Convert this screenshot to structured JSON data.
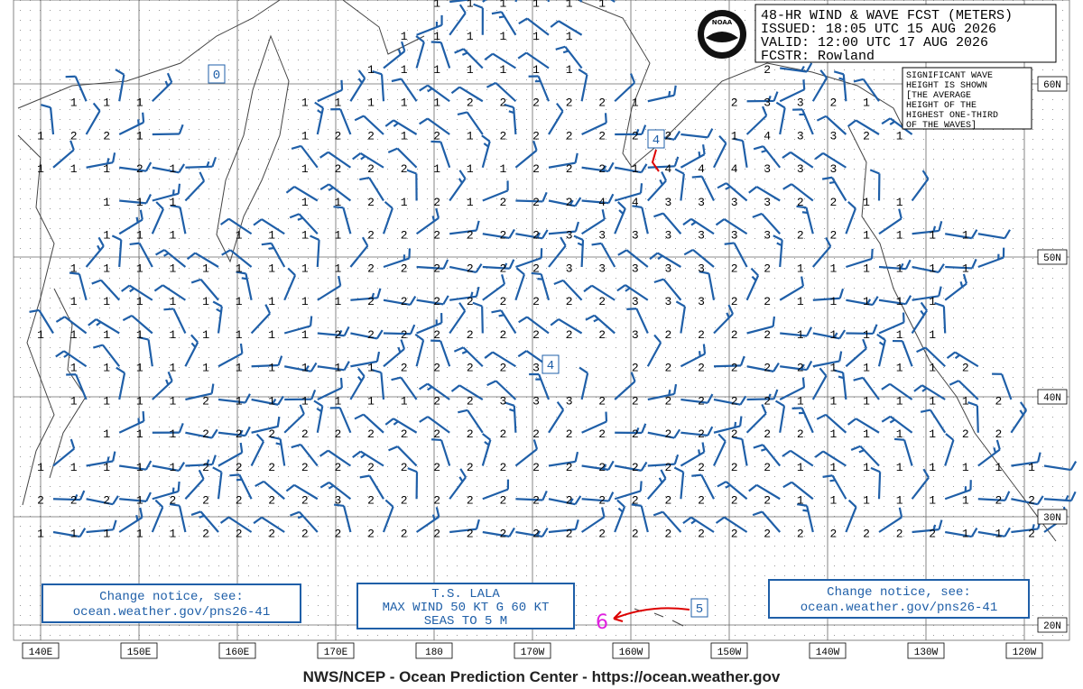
{
  "header": {
    "lines": [
      "48-HR WIND & WAVE FCST (METERS)",
      "ISSUED: 18:05 UTC 15 AUG 2026",
      "VALID:  12:00 UTC 17 AUG 2026",
      "FCSTR:  Rowland"
    ]
  },
  "logo": "NOAA",
  "legend_note": [
    "SIGNIFICANT WAVE",
    "HEIGHT IS SHOWN",
    "[THE AVERAGE",
    "HEIGHT OF THE",
    "HIGHEST ONE-THIRD",
    "OF THE WAVES]"
  ],
  "latitude_labels": [
    "60N",
    "50N",
    "40N",
    "30N",
    "20N"
  ],
  "longitude_labels": [
    "140E",
    "150E",
    "160E",
    "170E",
    "180",
    "170W",
    "160W",
    "150W",
    "140W",
    "130W",
    "120W"
  ],
  "boxed_heights": [
    0,
    4,
    4,
    5
  ],
  "storm_symbol": "6",
  "notice_left": [
    "Change notice, see:",
    "ocean.weather.gov/pns26-41"
  ],
  "notice_right": [
    "Change notice, see:",
    "ocean.weather.gov/pns26-41"
  ],
  "storm_box": [
    "T.S. LALA",
    "MAX WIND 50 KT G 60 KT",
    "SEAS TO 5 M"
  ],
  "footer": "NWS/NCEP - Ocean Prediction Center - https://ocean.weather.gov",
  "wave_heights": [
    [
      null,
      null,
      null,
      null,
      null,
      null,
      null,
      null,
      null,
      null,
      null,
      null,
      1,
      1,
      1,
      1,
      1,
      1,
      null,
      null,
      null,
      null,
      null,
      null,
      null,
      null,
      null,
      null,
      null,
      null,
      null
    ],
    [
      null,
      null,
      null,
      null,
      null,
      null,
      null,
      null,
      null,
      null,
      null,
      1,
      1,
      1,
      1,
      1,
      1,
      null,
      null,
      null,
      null,
      null,
      null,
      null,
      null,
      null,
      null,
      null,
      null,
      null,
      null
    ],
    [
      null,
      null,
      null,
      null,
      null,
      null,
      null,
      null,
      null,
      null,
      1,
      1,
      1,
      1,
      1,
      1,
      1,
      null,
      null,
      null,
      null,
      null,
      2,
      null,
      null,
      null,
      null,
      null,
      null,
      null,
      null
    ],
    [
      null,
      1,
      1,
      1,
      null,
      null,
      null,
      null,
      1,
      1,
      1,
      1,
      1,
      2,
      2,
      2,
      2,
      2,
      1,
      null,
      null,
      2,
      3,
      3,
      2,
      1,
      null,
      null,
      null,
      null,
      null
    ],
    [
      1,
      2,
      2,
      1,
      null,
      null,
      null,
      null,
      1,
      2,
      2,
      1,
      2,
      1,
      2,
      2,
      2,
      2,
      2,
      2,
      null,
      1,
      4,
      3,
      3,
      2,
      1,
      null,
      null,
      null,
      null
    ],
    [
      1,
      1,
      1,
      2,
      1,
      null,
      null,
      null,
      1,
      2,
      2,
      2,
      1,
      1,
      1,
      2,
      2,
      2,
      1,
      4,
      4,
      4,
      3,
      3,
      3,
      null,
      null,
      null,
      null,
      null,
      null
    ],
    [
      null,
      null,
      1,
      1,
      1,
      null,
      null,
      null,
      1,
      1,
      2,
      1,
      2,
      1,
      2,
      2,
      2,
      4,
      4,
      3,
      3,
      3,
      3,
      2,
      2,
      1,
      1,
      null,
      null,
      null,
      null
    ],
    [
      null,
      null,
      1,
      1,
      1,
      null,
      1,
      1,
      1,
      1,
      2,
      2,
      2,
      2,
      2,
      2,
      3,
      3,
      3,
      3,
      3,
      3,
      3,
      2,
      2,
      1,
      1,
      1,
      1,
      null,
      null
    ],
    [
      null,
      1,
      1,
      1,
      1,
      1,
      1,
      1,
      1,
      1,
      2,
      2,
      2,
      2,
      2,
      2,
      3,
      3,
      3,
      3,
      3,
      2,
      2,
      1,
      1,
      1,
      1,
      1,
      1,
      null,
      null
    ],
    [
      null,
      1,
      1,
      1,
      1,
      1,
      1,
      1,
      1,
      1,
      2,
      2,
      2,
      2,
      2,
      2,
      2,
      2,
      3,
      3,
      3,
      2,
      2,
      1,
      1,
      1,
      1,
      1,
      null,
      null,
      null
    ],
    [
      1,
      1,
      1,
      1,
      1,
      1,
      1,
      1,
      1,
      2,
      2,
      2,
      2,
      2,
      2,
      2,
      2,
      2,
      3,
      2,
      2,
      2,
      2,
      1,
      1,
      1,
      1,
      1,
      null,
      null,
      null
    ],
    [
      null,
      1,
      1,
      1,
      1,
      1,
      1,
      1,
      1,
      1,
      1,
      2,
      2,
      2,
      2,
      3,
      null,
      null,
      2,
      2,
      2,
      2,
      2,
      2,
      1,
      1,
      1,
      1,
      2,
      null,
      null
    ],
    [
      null,
      1,
      1,
      1,
      1,
      2,
      1,
      1,
      1,
      1,
      1,
      1,
      2,
      2,
      3,
      3,
      3,
      2,
      2,
      2,
      2,
      2,
      2,
      1,
      1,
      1,
      1,
      1,
      1,
      2,
      null
    ],
    [
      null,
      null,
      1,
      1,
      1,
      2,
      2,
      2,
      2,
      2,
      2,
      2,
      2,
      2,
      2,
      2,
      2,
      2,
      2,
      2,
      2,
      2,
      2,
      2,
      1,
      1,
      1,
      1,
      2,
      2,
      null
    ],
    [
      1,
      1,
      1,
      1,
      1,
      2,
      2,
      2,
      2,
      2,
      2,
      2,
      2,
      2,
      2,
      2,
      2,
      2,
      2,
      2,
      2,
      2,
      2,
      1,
      1,
      1,
      1,
      1,
      1,
      1,
      1
    ],
    [
      2,
      2,
      2,
      1,
      2,
      2,
      2,
      2,
      2,
      3,
      2,
      2,
      2,
      2,
      2,
      2,
      2,
      2,
      2,
      2,
      2,
      2,
      2,
      1,
      1,
      1,
      1,
      1,
      1,
      2,
      2
    ],
    [
      1,
      1,
      1,
      1,
      1,
      2,
      2,
      2,
      2,
      2,
      2,
      2,
      2,
      2,
      2,
      2,
      2,
      2,
      2,
      2,
      2,
      2,
      2,
      2,
      2,
      2,
      2,
      2,
      1,
      1,
      2
    ]
  ]
}
